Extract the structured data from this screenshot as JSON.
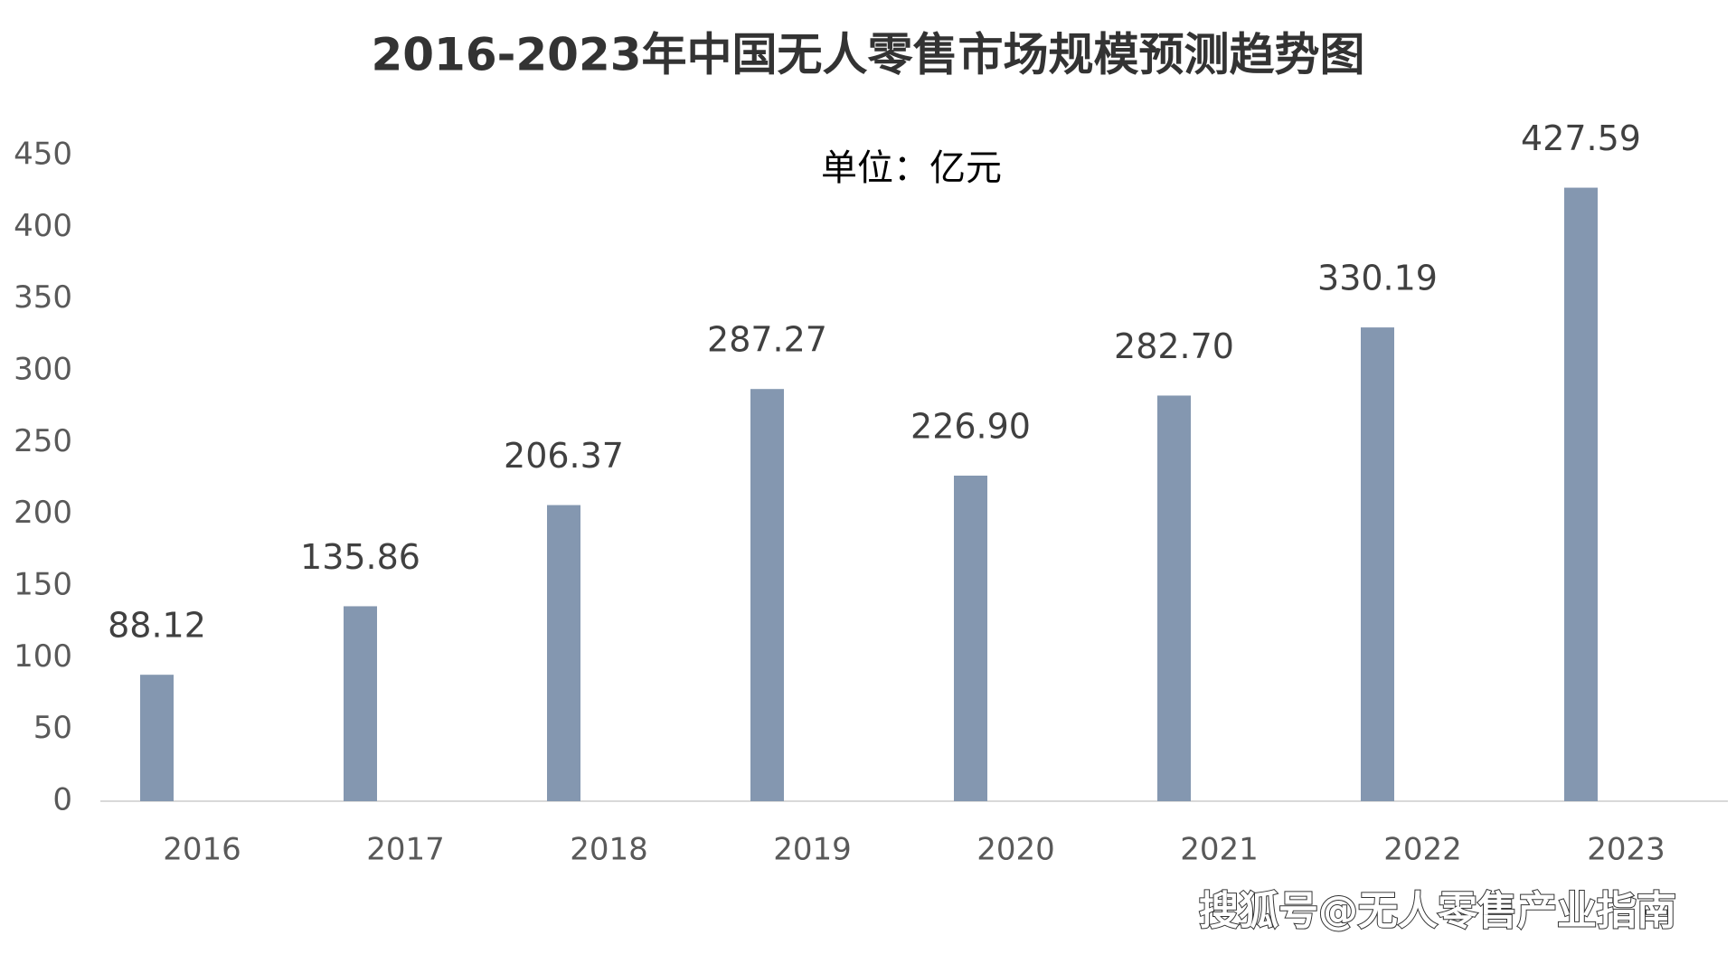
{
  "chart_data": {
    "type": "bar",
    "title": "2016-2023年中国无人零售市场规模预测趋势图",
    "subtitle": "单位：亿元",
    "categories": [
      "2016",
      "2017",
      "2018",
      "2019",
      "2020",
      "2021",
      "2022",
      "2023"
    ],
    "values": [
      88.12,
      135.86,
      206.37,
      287.27,
      226.9,
      282.7,
      330.19,
      427.59
    ],
    "value_labels": [
      "88.12",
      "135.86",
      "206.37",
      "287.27",
      "226.90",
      "282.70",
      "330.19",
      "427.59"
    ],
    "color": "#8497b0",
    "ylim": [
      0,
      450
    ],
    "yticks": [
      0,
      50,
      100,
      150,
      200,
      250,
      300,
      350,
      400,
      450
    ],
    "grid": false,
    "watermark": "搜狐号@无人零售产业指南"
  }
}
